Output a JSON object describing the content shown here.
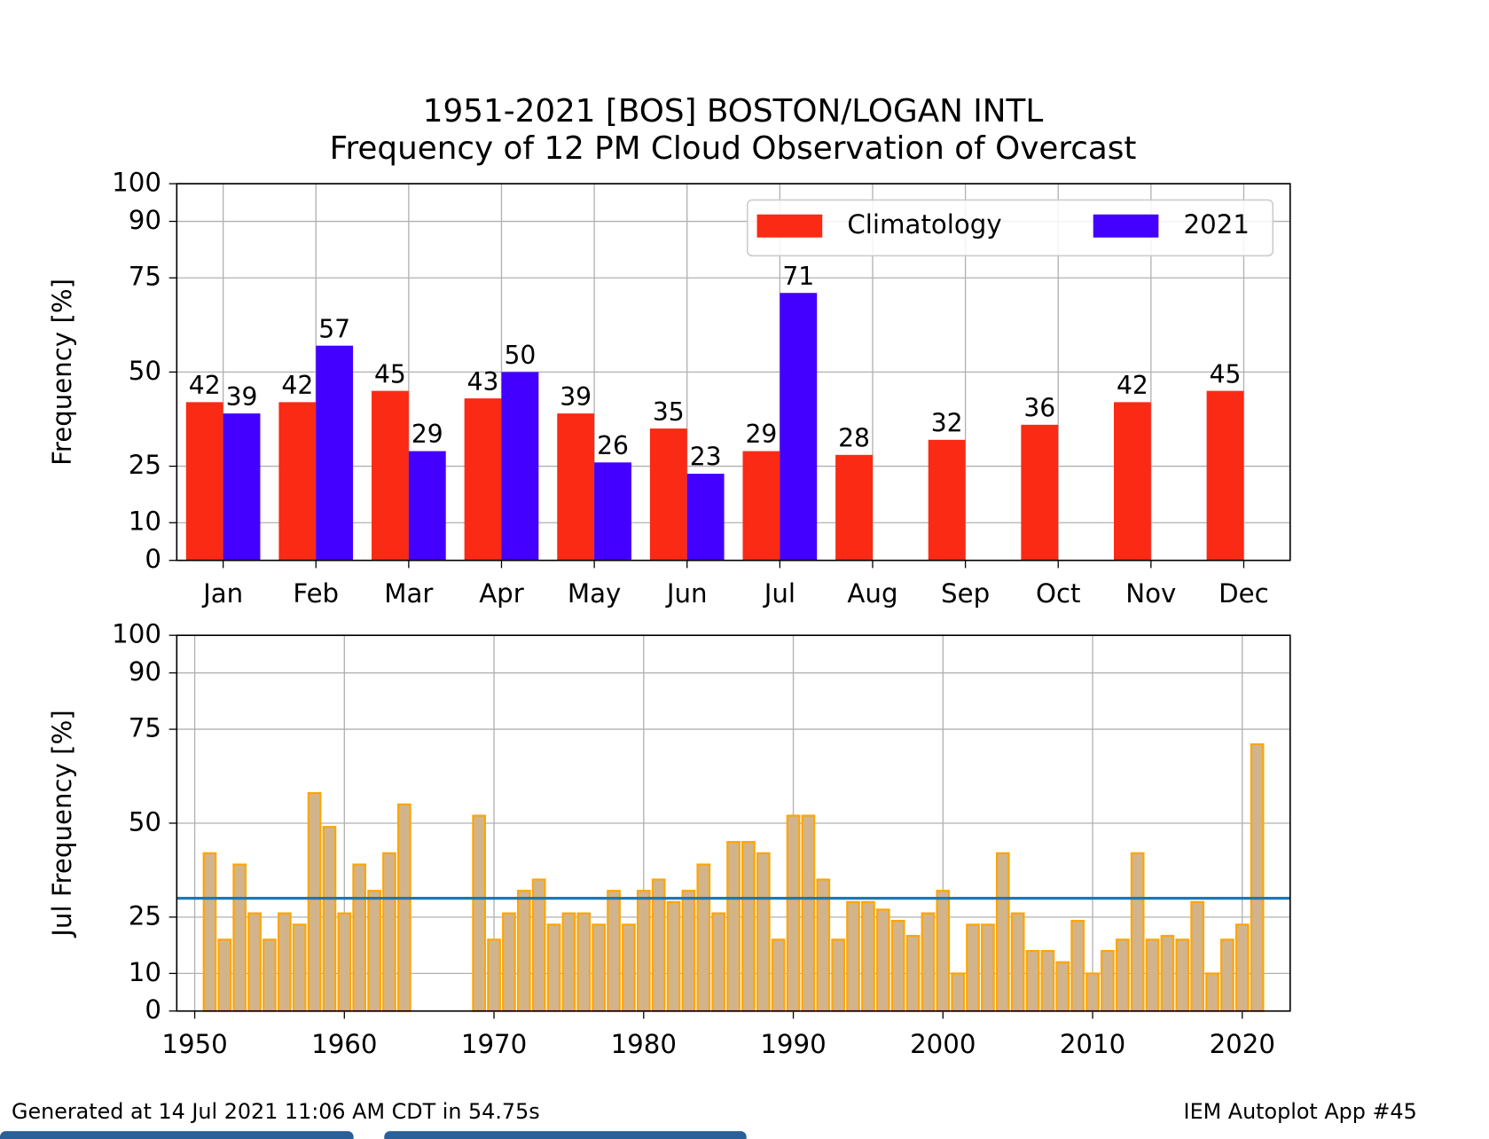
{
  "chart_data": [
    {
      "type": "bar",
      "title": "1951-2021 [BOS] BOSTON/LOGAN INTL",
      "subtitle": "Frequency of 12 PM Cloud Observation of Overcast",
      "ylabel": "Frequency [%]",
      "categories": [
        "Jan",
        "Feb",
        "Mar",
        "Apr",
        "May",
        "Jun",
        "Jul",
        "Aug",
        "Sep",
        "Oct",
        "Nov",
        "Dec"
      ],
      "series": [
        {
          "name": "Climatology",
          "color": "#fa2a14",
          "values": [
            42,
            42,
            45,
            43,
            39,
            35,
            29,
            28,
            32,
            36,
            42,
            45
          ]
        },
        {
          "name": "2021",
          "color": "#4400ff",
          "values": [
            39,
            57,
            29,
            50,
            26,
            23,
            71,
            null,
            null,
            null,
            null,
            null
          ]
        }
      ],
      "ylim": [
        0,
        100
      ],
      "yticks": [
        0,
        10,
        25,
        50,
        75,
        90,
        100
      ],
      "grid": true,
      "legend": "upper right"
    },
    {
      "type": "bar",
      "ylabel": "Jul Frequency [%]",
      "x": [
        1951,
        1952,
        1953,
        1954,
        1955,
        1956,
        1957,
        1958,
        1959,
        1960,
        1961,
        1962,
        1963,
        1964,
        1969,
        1970,
        1971,
        1972,
        1973,
        1974,
        1975,
        1976,
        1977,
        1978,
        1979,
        1980,
        1981,
        1982,
        1983,
        1984,
        1985,
        1986,
        1987,
        1988,
        1989,
        1990,
        1991,
        1992,
        1993,
        1994,
        1995,
        1996,
        1997,
        1998,
        1999,
        2000,
        2001,
        2002,
        2003,
        2004,
        2005,
        2006,
        2007,
        2008,
        2009,
        2010,
        2011,
        2012,
        2013,
        2014,
        2015,
        2016,
        2017,
        2018,
        2019,
        2020,
        2021
      ],
      "values": [
        42,
        19,
        39,
        26,
        19,
        26,
        23,
        58,
        49,
        26,
        39,
        32,
        42,
        55,
        52,
        19,
        26,
        32,
        35,
        23,
        26,
        26,
        23,
        32,
        23,
        32,
        35,
        29,
        32,
        39,
        26,
        45,
        45,
        42,
        19,
        52,
        52,
        35,
        19,
        29,
        29,
        27,
        24,
        20,
        26,
        32,
        10,
        23,
        23,
        42,
        26,
        16,
        16,
        13,
        24,
        10,
        16,
        19,
        42,
        19,
        20,
        19,
        29,
        10,
        19,
        23,
        71
      ],
      "color": "#d2b48c",
      "edgecolor": "#ffa500",
      "hline": {
        "value": 30,
        "color": "#1f77b4"
      },
      "xlim": [
        1948.8,
        2023.2
      ],
      "xticks": [
        1950,
        1960,
        1970,
        1980,
        1990,
        2000,
        2010,
        2020
      ],
      "ylim": [
        0,
        100
      ],
      "yticks": [
        0,
        10,
        25,
        50,
        75,
        90,
        100
      ],
      "grid": true
    }
  ],
  "footer": {
    "generated": "Generated at 14 Jul 2021 11:06 AM CDT in 54.75s",
    "app": "IEM Autoplot App #45"
  }
}
